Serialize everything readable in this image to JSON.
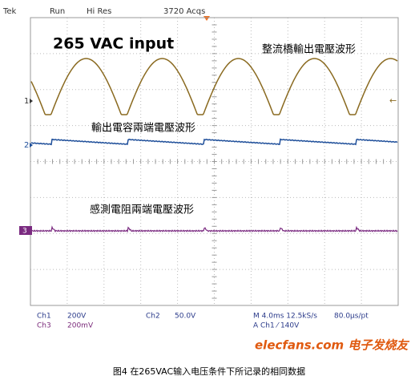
{
  "header": {
    "brand": "Tek",
    "state": "Run",
    "mode": "Hi Res",
    "acquisitions": "3720 Acqs"
  },
  "annotations": [
    "265 VAC input",
    "整流橋輸出電壓波形",
    "輸出電容兩端電壓波形",
    "感測電阻兩端電壓波形"
  ],
  "channel_markers": [
    "1",
    "2",
    "3"
  ],
  "status": {
    "ch1_label": "Ch1",
    "ch1_scale": "200V",
    "ch2_label": "Ch2",
    "ch2_scale": "50.0V",
    "timebase": "M 4.0ms 12.5kS/s",
    "resolution": "80.0µs/pt",
    "ch3_label": "Ch3",
    "ch3_scale": "200mV",
    "trigger": "A  Ch1  ⁄  140V"
  },
  "watermark": "elecfans.com 电子发烧友",
  "caption": "图4 在265VAC输入电压条件下所记录的相同数据"
}
